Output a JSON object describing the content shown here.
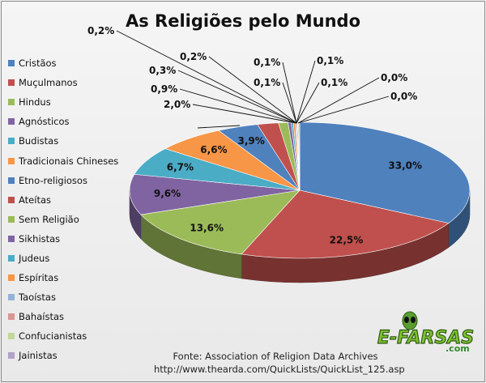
{
  "chart_data": {
    "type": "pie",
    "title": "As Religiões pelo Mundo",
    "categories": [
      "Cristãos",
      "Muçulmanos",
      "Hindus",
      "Agnósticos",
      "Budistas",
      "Tradicionais Chineses",
      "Etno-religiosos",
      "Ateítas",
      "Sem Religião",
      "Sikhistas",
      "Judeus",
      "Espíritas",
      "Taoístas",
      "Bahaístas",
      "Confucianistas",
      "Jainistas"
    ],
    "values": [
      33.0,
      22.5,
      13.6,
      9.6,
      6.7,
      6.6,
      3.9,
      2.0,
      0.9,
      0.3,
      0.2,
      0.2,
      0.1,
      0.1,
      0.1,
      0.1
    ],
    "value_labels": [
      "33,0%",
      "22,5%",
      "13,6%",
      "9,6%",
      "6,7%",
      "6,6%",
      "3,9%",
      "2,0%",
      "0,9%",
      "0,3%",
      "0,2%",
      "0,2%",
      "0,1%",
      "0,1%",
      "0,1%",
      "0,1%"
    ],
    "extra_labels": [
      "0,0%",
      "0,0%"
    ],
    "colors": [
      "#4f81bd",
      "#c0504d",
      "#9bbb59",
      "#8064a2",
      "#4bacc6",
      "#f79646",
      "#4f81bd",
      "#c0504d",
      "#9bbb59",
      "#8064a2",
      "#4bacc6",
      "#f79646",
      "#95b3d7",
      "#d99694",
      "#c3d69b",
      "#b3a2c7"
    ],
    "legend_placement": "left",
    "style": "3d-pie"
  },
  "source": {
    "line1": "Fonte: Association of Religion Data Archives",
    "line2": "http://www.thearda.com/QuickLists/QuickList_125.asp"
  },
  "logo": {
    "text": "E-FARSAS",
    "suffix": ".com"
  }
}
